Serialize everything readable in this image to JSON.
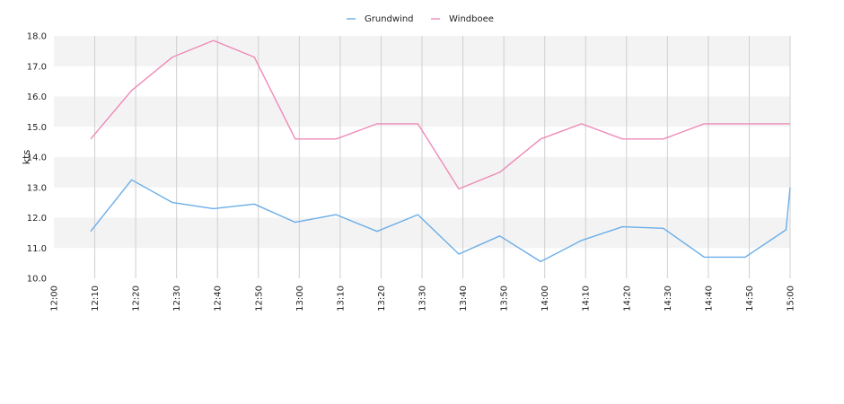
{
  "chart_data": {
    "type": "line",
    "ylabel": "kts",
    "ylim": [
      10.0,
      18.0
    ],
    "y_ticks": [
      "10.0",
      "11.0",
      "12.0",
      "13.0",
      "14.0",
      "15.0",
      "16.0",
      "17.0",
      "18.0"
    ],
    "x_range": [
      "12:00",
      "15:00"
    ],
    "x_ticks": [
      "12:00",
      "12:10",
      "12:20",
      "12:30",
      "12:40",
      "12:50",
      "13:00",
      "13:10",
      "13:20",
      "13:30",
      "13:40",
      "13:50",
      "14:00",
      "14:10",
      "14:20",
      "14:30",
      "14:40",
      "14:50",
      "15:00"
    ],
    "legend_position": "top-center",
    "grid": true,
    "series": [
      {
        "name": "Grundwind",
        "color": "#6aaee8",
        "points": [
          [
            "12:09",
            11.55
          ],
          [
            "12:19",
            13.25
          ],
          [
            "12:29",
            12.5
          ],
          [
            "12:39",
            12.3
          ],
          [
            "12:49",
            12.45
          ],
          [
            "12:59",
            11.85
          ],
          [
            "13:09",
            12.1
          ],
          [
            "13:19",
            11.55
          ],
          [
            "13:29",
            12.1
          ],
          [
            "13:39",
            10.8
          ],
          [
            "13:49",
            11.4
          ],
          [
            "13:59",
            10.55
          ],
          [
            "14:09",
            11.25
          ],
          [
            "14:19",
            11.7
          ],
          [
            "14:29",
            11.65
          ],
          [
            "14:39",
            10.7
          ],
          [
            "14:49",
            10.7
          ],
          [
            "14:59",
            11.6
          ],
          [
            "15:00",
            13.0
          ]
        ]
      },
      {
        "name": "Windboee",
        "color": "#ee8ab8",
        "points": [
          [
            "12:09",
            14.6
          ],
          [
            "12:19",
            16.2
          ],
          [
            "12:29",
            17.3
          ],
          [
            "12:39",
            17.85
          ],
          [
            "12:49",
            17.3
          ],
          [
            "12:59",
            14.6
          ],
          [
            "13:09",
            14.6
          ],
          [
            "13:19",
            15.1
          ],
          [
            "13:29",
            15.1
          ],
          [
            "13:39",
            12.95
          ],
          [
            "13:49",
            13.5
          ],
          [
            "13:59",
            14.6
          ],
          [
            "14:09",
            15.1
          ],
          [
            "14:19",
            14.6
          ],
          [
            "14:29",
            14.6
          ],
          [
            "14:39",
            15.1
          ],
          [
            "14:49",
            15.1
          ],
          [
            "14:59",
            15.1
          ],
          [
            "15:00",
            15.1
          ]
        ]
      }
    ]
  }
}
